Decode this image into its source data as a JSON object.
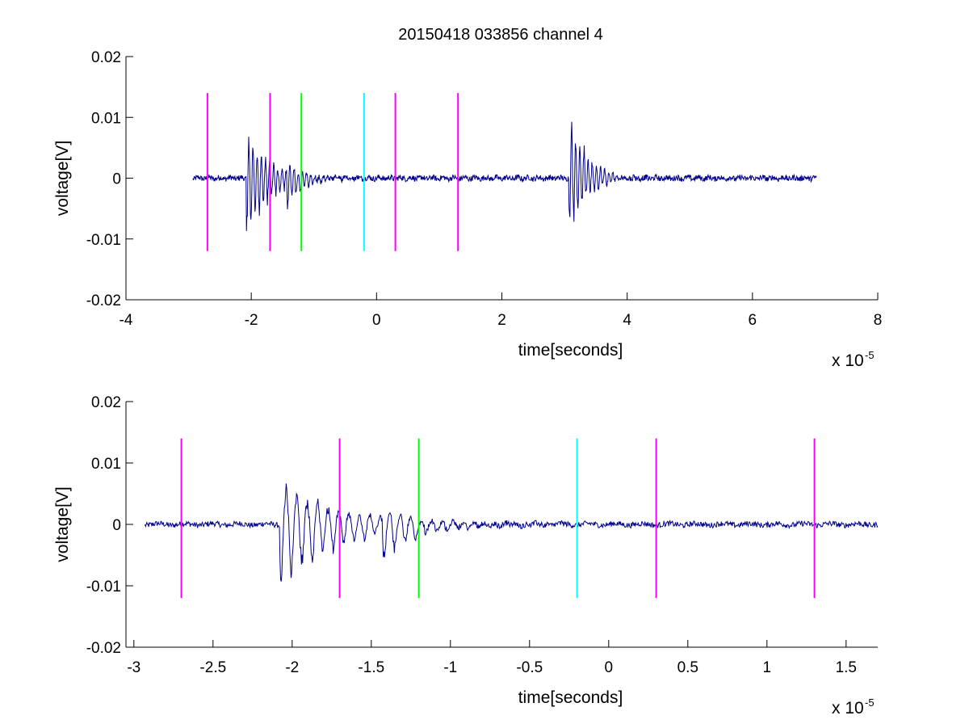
{
  "figure": {
    "title": "20150418 033856 channel 4"
  },
  "chart_data": [
    {
      "type": "line",
      "title": "20150418 033856 channel 4",
      "xlabel": "time[seconds]",
      "ylabel": "voltage[V]",
      "x_multiplier_label": "x 10",
      "x_multiplier_exponent": "-5",
      "xlim": [
        -4,
        8
      ],
      "ylim": [
        -0.02,
        0.02
      ],
      "xticks": [
        -4,
        -2,
        0,
        2,
        4,
        6,
        8
      ],
      "xtick_labels": [
        "-4",
        "-2",
        "0",
        "2",
        "4",
        "6",
        "8"
      ],
      "yticks": [
        0.02,
        0.01,
        0,
        -0.01,
        -0.02
      ],
      "ytick_labels": [
        "0.02",
        "0.01",
        "0",
        "-0.01",
        "-0.02"
      ],
      "grid": false,
      "signal": {
        "color": "#00008b",
        "x_range": [
          -2.93,
          7.02
        ],
        "events": [
          {
            "t": -2.05,
            "peak_pos": 0.0075,
            "peak_neg": -0.0108,
            "decay": 0.35
          },
          {
            "t": -1.4,
            "peak_pos": 0.0015,
            "peak_neg": -0.0052,
            "decay": 0.2
          },
          {
            "t": 3.1,
            "peak_pos": 0.0127,
            "peak_neg": -0.0098,
            "decay": 0.25
          }
        ]
      },
      "vlines": [
        {
          "x": -2.7,
          "y0": -0.012,
          "y1": 0.014,
          "color": "#ff00ff"
        },
        {
          "x": -1.7,
          "y0": -0.012,
          "y1": 0.014,
          "color": "#ff00ff"
        },
        {
          "x": -1.2,
          "y0": -0.012,
          "y1": 0.014,
          "color": "#00ff00"
        },
        {
          "x": -0.2,
          "y0": -0.012,
          "y1": 0.014,
          "color": "#00ffff"
        },
        {
          "x": 0.3,
          "y0": -0.012,
          "y1": 0.014,
          "color": "#ff00ff"
        },
        {
          "x": 1.3,
          "y0": -0.012,
          "y1": 0.014,
          "color": "#ff00ff"
        }
      ]
    },
    {
      "type": "line",
      "title": "",
      "xlabel": "time[seconds]",
      "ylabel": "voltage[V]",
      "x_multiplier_label": "x 10",
      "x_multiplier_exponent": "-5",
      "xlim": [
        -3.05,
        1.7
      ],
      "ylim": [
        -0.02,
        0.02
      ],
      "xticks": [
        -3,
        -2.5,
        -2,
        -1.5,
        -1,
        -0.5,
        0,
        0.5,
        1,
        1.5
      ],
      "xtick_labels": [
        "-3",
        "-2.5",
        "-2",
        "-1.5",
        "-1",
        "-0.5",
        "0",
        "0.5",
        "1",
        "1.5"
      ],
      "yticks": [
        0.02,
        0.01,
        0,
        -0.01,
        -0.02
      ],
      "ytick_labels": [
        "0.02",
        "0.01",
        "0",
        "-0.01",
        "-0.02"
      ],
      "grid": false,
      "signal": {
        "color": "#00008b",
        "x_range": [
          -2.93,
          1.7
        ],
        "events": [
          {
            "t": -2.05,
            "peak_pos": 0.0075,
            "peak_neg": -0.0108,
            "decay": 0.35
          },
          {
            "t": -1.4,
            "peak_pos": 0.0015,
            "peak_neg": -0.0052,
            "decay": 0.2
          }
        ]
      },
      "vlines": [
        {
          "x": -2.7,
          "y0": -0.012,
          "y1": 0.014,
          "color": "#ff00ff"
        },
        {
          "x": -1.7,
          "y0": -0.012,
          "y1": 0.014,
          "color": "#ff00ff"
        },
        {
          "x": -1.2,
          "y0": -0.012,
          "y1": 0.014,
          "color": "#00ff00"
        },
        {
          "x": -0.2,
          "y0": -0.012,
          "y1": 0.014,
          "color": "#00ffff"
        },
        {
          "x": 0.3,
          "y0": -0.012,
          "y1": 0.014,
          "color": "#ff00ff"
        },
        {
          "x": 1.3,
          "y0": -0.012,
          "y1": 0.014,
          "color": "#ff00ff"
        }
      ]
    }
  ]
}
